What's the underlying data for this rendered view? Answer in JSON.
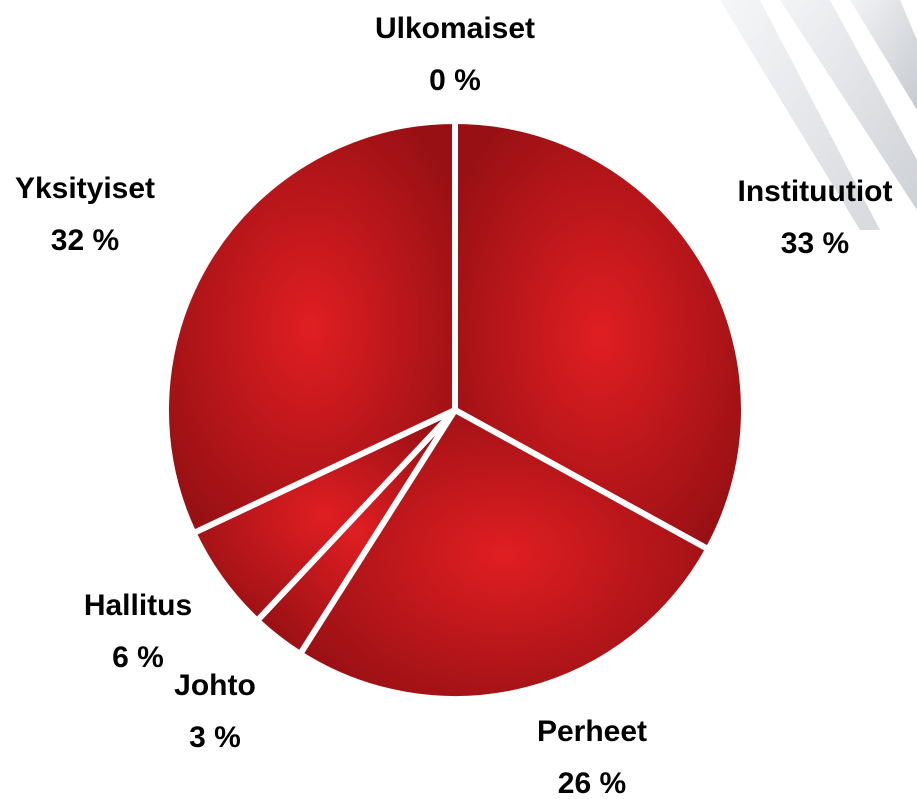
{
  "chart_data": {
    "type": "pie",
    "categories": [
      "Ulkomaiset",
      "Instituutiot",
      "Perheet",
      "Johto",
      "Hallitus",
      "Yksityiset"
    ],
    "values": [
      0,
      33,
      26,
      3,
      6,
      32
    ],
    "value_labels": [
      "0 %",
      "33 %",
      "26 %",
      "3 %",
      "6 %",
      "32 %"
    ],
    "color": "#e01e22"
  }
}
